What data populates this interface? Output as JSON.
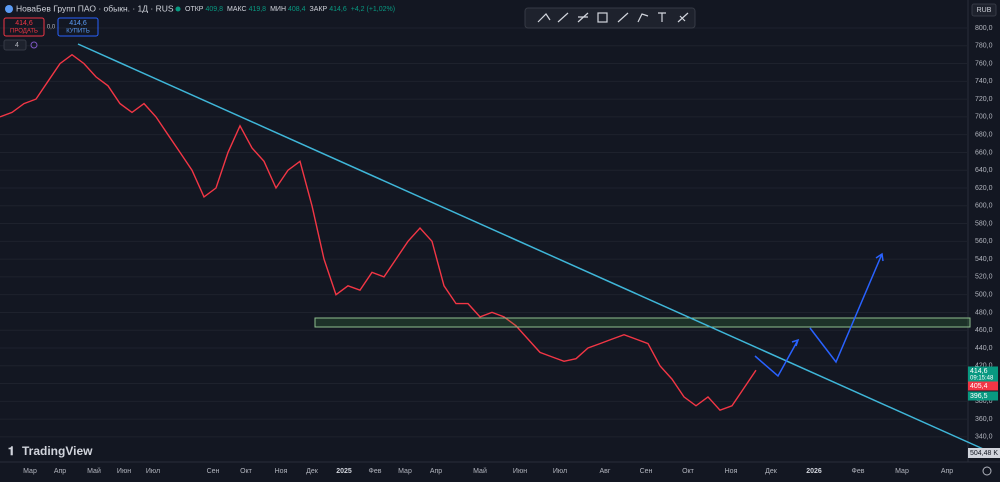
{
  "header": {
    "symbol": "НоваБев Групп ПАО · обыкн. · 1Д · RUS",
    "ohlc": [
      {
        "label": "ОТКР",
        "value": "409,8"
      },
      {
        "label": "МАКС",
        "value": "419,8"
      },
      {
        "label": "МИН",
        "value": "408,4"
      },
      {
        "label": "ЗАКР",
        "value": "414,6"
      }
    ],
    "change": "+4,2 (+1,02%)"
  },
  "trade": {
    "sell_price": "414,6",
    "sell_label": "ПРОДАТЬ",
    "spread": "0,0",
    "buy_price": "414,6",
    "buy_label": "КУПИТЬ"
  },
  "indicators_count": "4",
  "currency": "RUB",
  "price_axis": {
    "ylim": [
      314,
      831.5
    ],
    "ticks": [
      {
        "value": 340,
        "label": "340,0"
      },
      {
        "value": 360,
        "label": "360,0"
      },
      {
        "value": 380,
        "label": "380,0"
      },
      {
        "value": 400,
        "label": "400,0"
      },
      {
        "value": 420,
        "label": "420,0"
      },
      {
        "value": 440,
        "label": "440,0"
      },
      {
        "value": 460,
        "label": "460,0"
      },
      {
        "value": 480,
        "label": "480,0"
      },
      {
        "value": 500,
        "label": "500,0"
      },
      {
        "value": 520,
        "label": "520,0"
      },
      {
        "value": 540,
        "label": "540,0"
      },
      {
        "value": 560,
        "label": "560,0"
      },
      {
        "value": 580,
        "label": "580,0"
      },
      {
        "value": 600,
        "label": "600,0"
      },
      {
        "value": 620,
        "label": "620,0"
      },
      {
        "value": 640,
        "label": "640,0"
      },
      {
        "value": 660,
        "label": "660,0"
      },
      {
        "value": 680,
        "label": "680,0"
      },
      {
        "value": 700,
        "label": "700,0"
      },
      {
        "value": 720,
        "label": "720,0"
      },
      {
        "value": 740,
        "label": "740,0"
      },
      {
        "value": 760,
        "label": "760,0"
      },
      {
        "value": 780,
        "label": "780,0"
      },
      {
        "value": 800,
        "label": "800,0"
      }
    ]
  },
  "price_tags": [
    {
      "text": "414,6",
      "time": "09:15:48",
      "color": "#089981"
    },
    {
      "text": "405,4",
      "color": "#f23645"
    },
    {
      "text": "396,5",
      "color": "#089981"
    }
  ],
  "volume_tag": "504,48 K",
  "time_axis": [
    "Мар",
    "Апр",
    "Май",
    "Июн",
    "Июл",
    "Сен",
    "Окт",
    "Ноя",
    "Дек",
    "2025",
    "Фев",
    "Мар",
    "Апр",
    "Май",
    "Июн",
    "Июл",
    "Авг",
    "Сен",
    "Окт",
    "Ноя",
    "Дек",
    "2026",
    "Фев",
    "Мар",
    "Апр"
  ],
  "closes": [
    700,
    705,
    715,
    720,
    740,
    760,
    770,
    760,
    745,
    735,
    715,
    705,
    715,
    700,
    680,
    660,
    640,
    610,
    620,
    660,
    690,
    665,
    650,
    620,
    640,
    650,
    600,
    540,
    500,
    510,
    505,
    525,
    520,
    540,
    560,
    575,
    560,
    510,
    490,
    490,
    475,
    480,
    475,
    465,
    450,
    435,
    430,
    425,
    428,
    440,
    445,
    450,
    455,
    450,
    445,
    420,
    405,
    385,
    375,
    385,
    370,
    375,
    395,
    415
  ],
  "line_color": "#f23645",
  "brand": "TradingView"
}
